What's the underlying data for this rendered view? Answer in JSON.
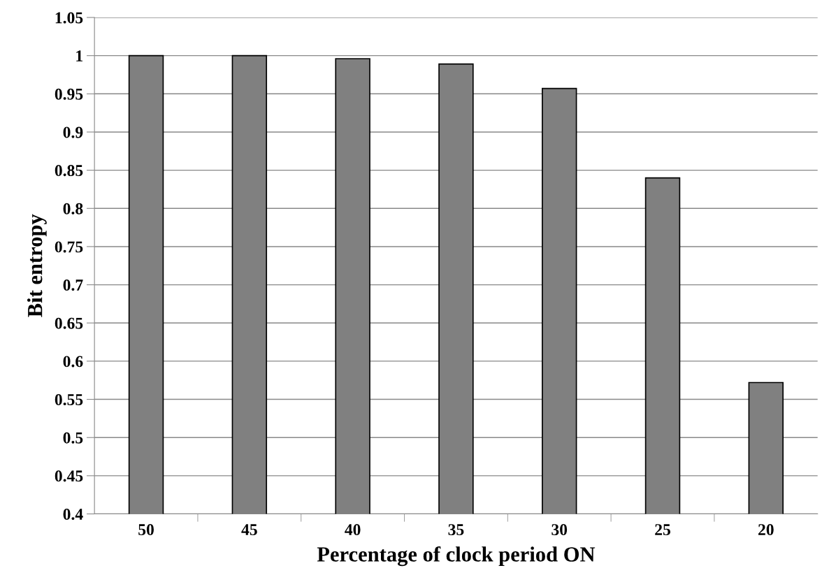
{
  "chart_data": {
    "type": "bar",
    "xlabel": "Percentage of clock period ON",
    "ylabel": "Bit entropy",
    "categories": [
      "50",
      "45",
      "40",
      "35",
      "30",
      "25",
      "20"
    ],
    "values": [
      1.0,
      1.0,
      0.996,
      0.989,
      0.957,
      0.84,
      0.572
    ],
    "color": "#808080",
    "ylim": [
      0.4,
      1.05
    ],
    "yticks": [
      0.4,
      0.45,
      0.5,
      0.55,
      0.6,
      0.65,
      0.7,
      0.75,
      0.8,
      0.85,
      0.9,
      0.95,
      1,
      1.05
    ],
    "grid": "y",
    "legend": false
  }
}
